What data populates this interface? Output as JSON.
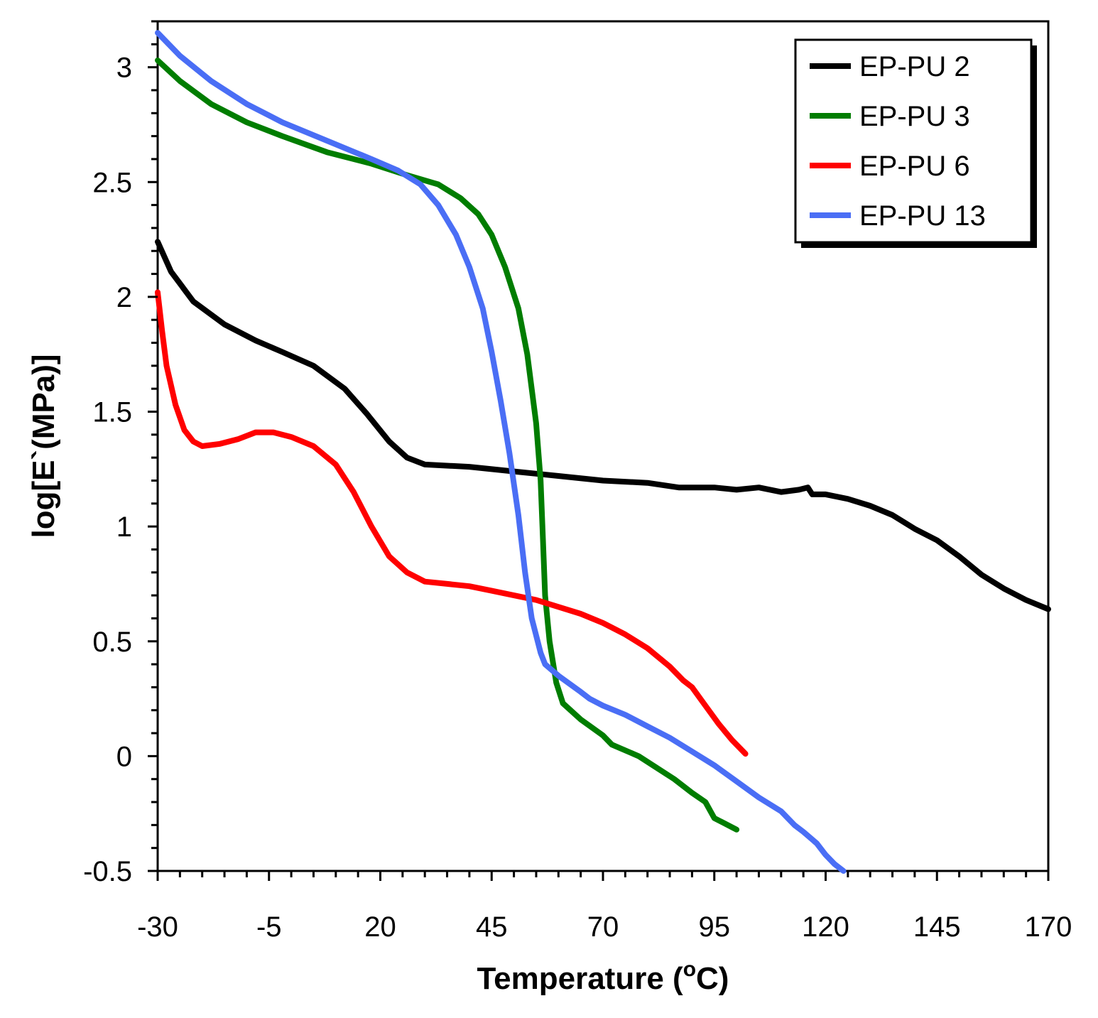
{
  "chart_data": {
    "type": "line",
    "title": "",
    "xlabel": "Temperature (",
    "xlabel_sup": "o",
    "xlabel_suffix": "C)",
    "ylabel": "log[E`(MPa)]",
    "xlim": [
      -30,
      170
    ],
    "ylim": [
      -0.5,
      3.2
    ],
    "xticks": [
      -30,
      -5,
      20,
      45,
      70,
      95,
      120,
      145,
      170
    ],
    "xtick_labels": [
      "-30",
      "-5",
      "20",
      "45",
      "70",
      "95",
      "120",
      "145",
      "170"
    ],
    "yticks": [
      -0.5,
      0,
      0.5,
      1,
      1.5,
      2,
      2.5,
      3
    ],
    "ytick_labels": [
      "-0.5",
      "0",
      "0.5",
      "1",
      "1.5",
      "2",
      "2.5",
      "3"
    ],
    "x_minor_step": 5,
    "y_minor_step": 0.1,
    "grid": false,
    "legend_position": "top-right",
    "series": [
      {
        "name": "EP-PU 2",
        "color": "#000000",
        "points": [
          [
            -30,
            2.24
          ],
          [
            -27,
            2.11
          ],
          [
            -22,
            1.98
          ],
          [
            -15,
            1.88
          ],
          [
            -8,
            1.81
          ],
          [
            -2,
            1.76
          ],
          [
            5,
            1.7
          ],
          [
            12,
            1.6
          ],
          [
            17,
            1.49
          ],
          [
            22,
            1.37
          ],
          [
            26,
            1.3
          ],
          [
            30,
            1.27
          ],
          [
            40,
            1.26
          ],
          [
            50,
            1.24
          ],
          [
            60,
            1.22
          ],
          [
            70,
            1.2
          ],
          [
            80,
            1.19
          ],
          [
            87,
            1.17
          ],
          [
            95,
            1.17
          ],
          [
            100,
            1.16
          ],
          [
            105,
            1.17
          ],
          [
            110,
            1.15
          ],
          [
            114,
            1.16
          ],
          [
            116,
            1.17
          ],
          [
            117,
            1.14
          ],
          [
            120,
            1.14
          ],
          [
            125,
            1.12
          ],
          [
            130,
            1.09
          ],
          [
            135,
            1.05
          ],
          [
            140,
            0.99
          ],
          [
            145,
            0.94
          ],
          [
            150,
            0.87
          ],
          [
            155,
            0.79
          ],
          [
            160,
            0.73
          ],
          [
            165,
            0.68
          ],
          [
            170,
            0.64
          ]
        ]
      },
      {
        "name": "EP-PU 3",
        "color": "#007d00",
        "points": [
          [
            -30,
            3.03
          ],
          [
            -25,
            2.94
          ],
          [
            -18,
            2.84
          ],
          [
            -10,
            2.76
          ],
          [
            -2,
            2.7
          ],
          [
            8,
            2.63
          ],
          [
            18,
            2.58
          ],
          [
            26,
            2.53
          ],
          [
            33,
            2.49
          ],
          [
            38,
            2.43
          ],
          [
            42,
            2.36
          ],
          [
            45,
            2.27
          ],
          [
            48,
            2.13
          ],
          [
            51,
            1.95
          ],
          [
            53,
            1.75
          ],
          [
            55,
            1.45
          ],
          [
            56,
            1.2
          ],
          [
            56.5,
            0.95
          ],
          [
            57,
            0.7
          ],
          [
            58,
            0.5
          ],
          [
            59.5,
            0.32
          ],
          [
            61,
            0.23
          ],
          [
            65,
            0.16
          ],
          [
            70,
            0.09
          ],
          [
            72,
            0.05
          ],
          [
            78,
            0.0
          ],
          [
            82,
            -0.05
          ],
          [
            86,
            -0.1
          ],
          [
            90,
            -0.16
          ],
          [
            93,
            -0.2
          ],
          [
            95,
            -0.27
          ],
          [
            97,
            -0.29
          ],
          [
            99,
            -0.31
          ],
          [
            100,
            -0.32
          ]
        ]
      },
      {
        "name": "EP-PU 6",
        "color": "#ff0000",
        "points": [
          [
            -30,
            2.02
          ],
          [
            -29,
            1.85
          ],
          [
            -28,
            1.7
          ],
          [
            -26,
            1.53
          ],
          [
            -24,
            1.42
          ],
          [
            -22,
            1.37
          ],
          [
            -20,
            1.35
          ],
          [
            -16,
            1.36
          ],
          [
            -12,
            1.38
          ],
          [
            -8,
            1.41
          ],
          [
            -4,
            1.41
          ],
          [
            0,
            1.39
          ],
          [
            5,
            1.35
          ],
          [
            10,
            1.27
          ],
          [
            14,
            1.15
          ],
          [
            18,
            1.0
          ],
          [
            22,
            0.87
          ],
          [
            26,
            0.8
          ],
          [
            30,
            0.76
          ],
          [
            35,
            0.75
          ],
          [
            40,
            0.74
          ],
          [
            45,
            0.72
          ],
          [
            50,
            0.7
          ],
          [
            55,
            0.68
          ],
          [
            60,
            0.65
          ],
          [
            65,
            0.62
          ],
          [
            70,
            0.58
          ],
          [
            75,
            0.53
          ],
          [
            80,
            0.47
          ],
          [
            85,
            0.39
          ],
          [
            88,
            0.33
          ],
          [
            90,
            0.3
          ],
          [
            93,
            0.22
          ],
          [
            96,
            0.14
          ],
          [
            99,
            0.07
          ],
          [
            102,
            0.01
          ]
        ]
      },
      {
        "name": "EP-PU 13",
        "color": "#4a6ef5",
        "points": [
          [
            -30,
            3.15
          ],
          [
            -25,
            3.05
          ],
          [
            -18,
            2.94
          ],
          [
            -10,
            2.84
          ],
          [
            -2,
            2.76
          ],
          [
            8,
            2.68
          ],
          [
            18,
            2.6
          ],
          [
            24,
            2.55
          ],
          [
            29,
            2.49
          ],
          [
            33,
            2.4
          ],
          [
            37,
            2.27
          ],
          [
            40,
            2.13
          ],
          [
            43,
            1.95
          ],
          [
            45,
            1.76
          ],
          [
            47,
            1.55
          ],
          [
            49,
            1.32
          ],
          [
            51,
            1.05
          ],
          [
            52.5,
            0.8
          ],
          [
            54,
            0.6
          ],
          [
            56,
            0.45
          ],
          [
            57,
            0.4
          ],
          [
            60,
            0.35
          ],
          [
            65,
            0.28
          ],
          [
            67,
            0.25
          ],
          [
            70,
            0.22
          ],
          [
            75,
            0.18
          ],
          [
            80,
            0.13
          ],
          [
            85,
            0.08
          ],
          [
            90,
            0.02
          ],
          [
            95,
            -0.04
          ],
          [
            100,
            -0.11
          ],
          [
            105,
            -0.18
          ],
          [
            110,
            -0.24
          ],
          [
            113,
            -0.3
          ],
          [
            115,
            -0.33
          ],
          [
            118,
            -0.38
          ],
          [
            120,
            -0.43
          ],
          [
            122,
            -0.47
          ],
          [
            124,
            -0.5
          ]
        ]
      }
    ]
  }
}
